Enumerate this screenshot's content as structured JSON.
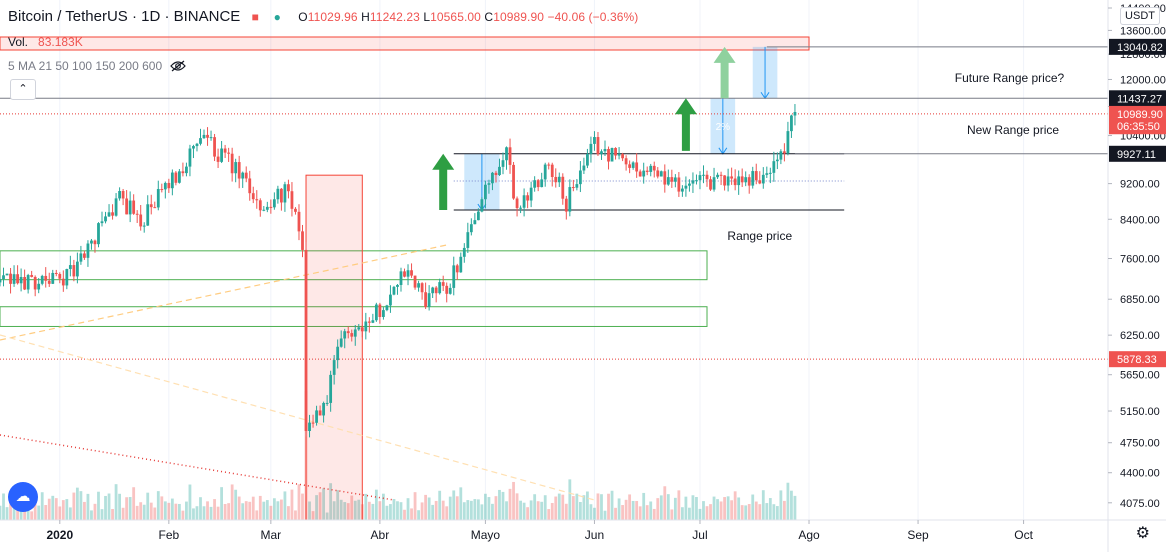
{
  "header": {
    "symbol": "Bitcoin / TetherUS · 1D · BINANCE",
    "ohlc": {
      "o_label": "O",
      "o": "11029.96",
      "h_label": "H",
      "h": "11242.23",
      "l_label": "L",
      "l": "10565.00",
      "c_label": "C",
      "c": "10989.90",
      "change": "−40.06 (−0.36%)"
    }
  },
  "volume": {
    "label": "Vol.",
    "value": "83.183K"
  },
  "ma": {
    "label": "5 MA 21 50 100 150 200 600"
  },
  "controls": {
    "currency": "USDT",
    "collapse_icon": "chevron-up-icon",
    "gear_icon": "gear-icon",
    "visibility_icon": "eye-off-icon"
  },
  "colors": {
    "up": "#26a69a",
    "down": "#ef5350",
    "accent_red": "#e53935",
    "range_line": "#131722",
    "box_green": "#4caf50",
    "box_red": "#f44336"
  },
  "chart_data": {
    "type": "candlestick",
    "y_scale": "log",
    "ylim": [
      3900,
      14400
    ],
    "x_range": [
      "2019-12-15",
      "2020-10-25"
    ],
    "x_tick_labels": [
      {
        "date": "2020-01-01",
        "label": "2020"
      },
      {
        "date": "2020-02-01",
        "label": "Feb"
      },
      {
        "date": "2020-03-01",
        "label": "Mar"
      },
      {
        "date": "2020-04-01",
        "label": "Abr"
      },
      {
        "date": "2020-05-01",
        "label": "Mayo"
      },
      {
        "date": "2020-06-01",
        "label": "Jun"
      },
      {
        "date": "2020-07-01",
        "label": "Jul"
      },
      {
        "date": "2020-08-01",
        "label": "Ago"
      },
      {
        "date": "2020-09-01",
        "label": "Sep"
      },
      {
        "date": "2020-10-01",
        "label": "Oct"
      }
    ],
    "y_tick_labels": [
      "14400.00",
      "13600.00",
      "12800.00",
      "12000.00",
      "11200.00",
      "10400.00",
      "9200.00",
      "8400.00",
      "7600.00",
      "6850.00",
      "6250.00",
      "5650.00",
      "5150.00",
      "4750.00",
      "4400.00",
      "4075.00"
    ],
    "price_tags": [
      {
        "value": 13040.82,
        "label": "13040.82",
        "style": "dark"
      },
      {
        "value": 11437.27,
        "label": "11437.27",
        "style": "dark"
      },
      {
        "value": 10989.9,
        "label": "10989.90",
        "style": "red"
      },
      {
        "value": 10650,
        "label": "06:35:50",
        "style": "red"
      },
      {
        "value": 9927.11,
        "label": "9927.11",
        "style": "dark"
      },
      {
        "value": 5878.33,
        "label": "5878.33",
        "style": "red"
      }
    ],
    "candle_segments": [
      {
        "from": "2019-12-15",
        "to": "2020-01-01",
        "start": 7150,
        "end": 7200
      },
      {
        "from": "2020-01-01",
        "to": "2020-01-06",
        "start": 7200,
        "end": 7350
      },
      {
        "from": "2020-01-06",
        "to": "2020-01-19",
        "start": 7350,
        "end": 8900
      },
      {
        "from": "2020-01-19",
        "to": "2020-01-25",
        "start": 8900,
        "end": 8350
      },
      {
        "from": "2020-01-25",
        "to": "2020-02-12",
        "start": 8350,
        "end": 10350
      },
      {
        "from": "2020-02-12",
        "to": "2020-02-20",
        "start": 10350,
        "end": 9600
      },
      {
        "from": "2020-02-20",
        "to": "2020-03-01",
        "start": 9600,
        "end": 8550
      },
      {
        "from": "2020-03-01",
        "to": "2020-03-06",
        "start": 8550,
        "end": 9100
      },
      {
        "from": "2020-03-06",
        "to": "2020-03-11",
        "start": 9100,
        "end": 7900
      },
      {
        "from": "2020-03-11",
        "to": "2020-03-12",
        "start": 7900,
        "end": 4900
      },
      {
        "from": "2020-03-12",
        "to": "2020-03-18",
        "start": 4900,
        "end": 5300
      },
      {
        "from": "2020-03-18",
        "to": "2020-03-22",
        "start": 5300,
        "end": 6200
      },
      {
        "from": "2020-03-22",
        "to": "2020-04-01",
        "start": 6200,
        "end": 6600
      },
      {
        "from": "2020-04-01",
        "to": "2020-04-09",
        "start": 6600,
        "end": 7350
      },
      {
        "from": "2020-04-09",
        "to": "2020-04-15",
        "start": 7350,
        "end": 6850
      },
      {
        "from": "2020-04-15",
        "to": "2020-04-22",
        "start": 6850,
        "end": 7150
      },
      {
        "from": "2020-04-22",
        "to": "2020-04-30",
        "start": 7150,
        "end": 8700
      },
      {
        "from": "2020-04-30",
        "to": "2020-05-08",
        "start": 8700,
        "end": 9900
      },
      {
        "from": "2020-05-08",
        "to": "2020-05-11",
        "start": 9900,
        "end": 8600
      },
      {
        "from": "2020-05-11",
        "to": "2020-05-20",
        "start": 8600,
        "end": 9750
      },
      {
        "from": "2020-05-20",
        "to": "2020-05-25",
        "start": 9750,
        "end": 8750
      },
      {
        "from": "2020-05-25",
        "to": "2020-06-02",
        "start": 8750,
        "end": 10150
      },
      {
        "from": "2020-06-02",
        "to": "2020-06-10",
        "start": 10150,
        "end": 9750
      },
      {
        "from": "2020-06-10",
        "to": "2020-06-27",
        "start": 9750,
        "end": 9150
      },
      {
        "from": "2020-06-27",
        "to": "2020-07-21",
        "start": 9150,
        "end": 9380
      },
      {
        "from": "2020-07-21",
        "to": "2020-07-26",
        "start": 9380,
        "end": 9900
      },
      {
        "from": "2020-07-26",
        "to": "2020-07-28",
        "start": 9900,
        "end": 10990
      }
    ],
    "overlays": {
      "range_box": {
        "from": "2020-04-22",
        "to": "2020-08-11",
        "top": 9927.11,
        "bottom": 8600
      },
      "green_zones": [
        {
          "from": "2019-12-15",
          "to": "2020-07-03",
          "top": 7750,
          "bottom": 7200
        },
        {
          "from": "2019-12-15",
          "to": "2020-07-03",
          "top": 6720,
          "bottom": 6390
        }
      ],
      "red_zone": {
        "from": "2020-03-11",
        "to": "2020-03-27",
        "top": 9400,
        "bottom": 3900
      },
      "red_volume_zone": {
        "from": "2019-12-15",
        "to": "2020-08-01",
        "top": 14400,
        "bottom": 13000
      },
      "h_lines": [
        {
          "value": 13040.82,
          "from": "2020-07-20",
          "to": "2020-10-25"
        },
        {
          "value": 11437.27,
          "from": "2019-12-15",
          "to": "2020-10-25"
        },
        {
          "value": 9927.11,
          "from": "2020-07-28",
          "to": "2020-10-25"
        }
      ],
      "dotted_lines": [
        {
          "value": 10989.9,
          "color": "red"
        },
        {
          "value": 5878.33,
          "color": "red"
        },
        {
          "value": 9260,
          "from": "2020-04-22",
          "to": "2020-08-11",
          "color": "blue"
        }
      ],
      "measure_boxes": [
        {
          "from": "2020-04-25",
          "to": "2020-05-05",
          "top": 9927.11,
          "bottom": 8600,
          "arrow": "down",
          "label": ""
        },
        {
          "from": "2020-07-04",
          "to": "2020-07-11",
          "top": 11437.27,
          "bottom": 9927.11,
          "arrow": "down",
          "label": "2%"
        },
        {
          "from": "2020-07-16",
          "to": "2020-07-23",
          "top": 13040.82,
          "bottom": 11437.27,
          "arrow": "down",
          "label": ""
        }
      ],
      "up_arrows": [
        {
          "date": "2020-04-19",
          "bottom": 8600,
          "top": 9927.11,
          "color": "#2e9e43"
        },
        {
          "date": "2020-06-27",
          "bottom": 10000,
          "top": 11437.27,
          "color": "#2e9e43"
        },
        {
          "date": "2020-07-08",
          "bottom": 11437.27,
          "top": 13040.82,
          "color": "#8fd19e"
        }
      ]
    },
    "annotations": [
      {
        "text": "Future Range price?",
        "date": "2020-09-27",
        "value": 12050
      },
      {
        "text": "New Range price",
        "date": "2020-09-28",
        "value": 10550
      },
      {
        "text": "Range price",
        "date": "2020-07-18",
        "value": 8050
      }
    ]
  }
}
